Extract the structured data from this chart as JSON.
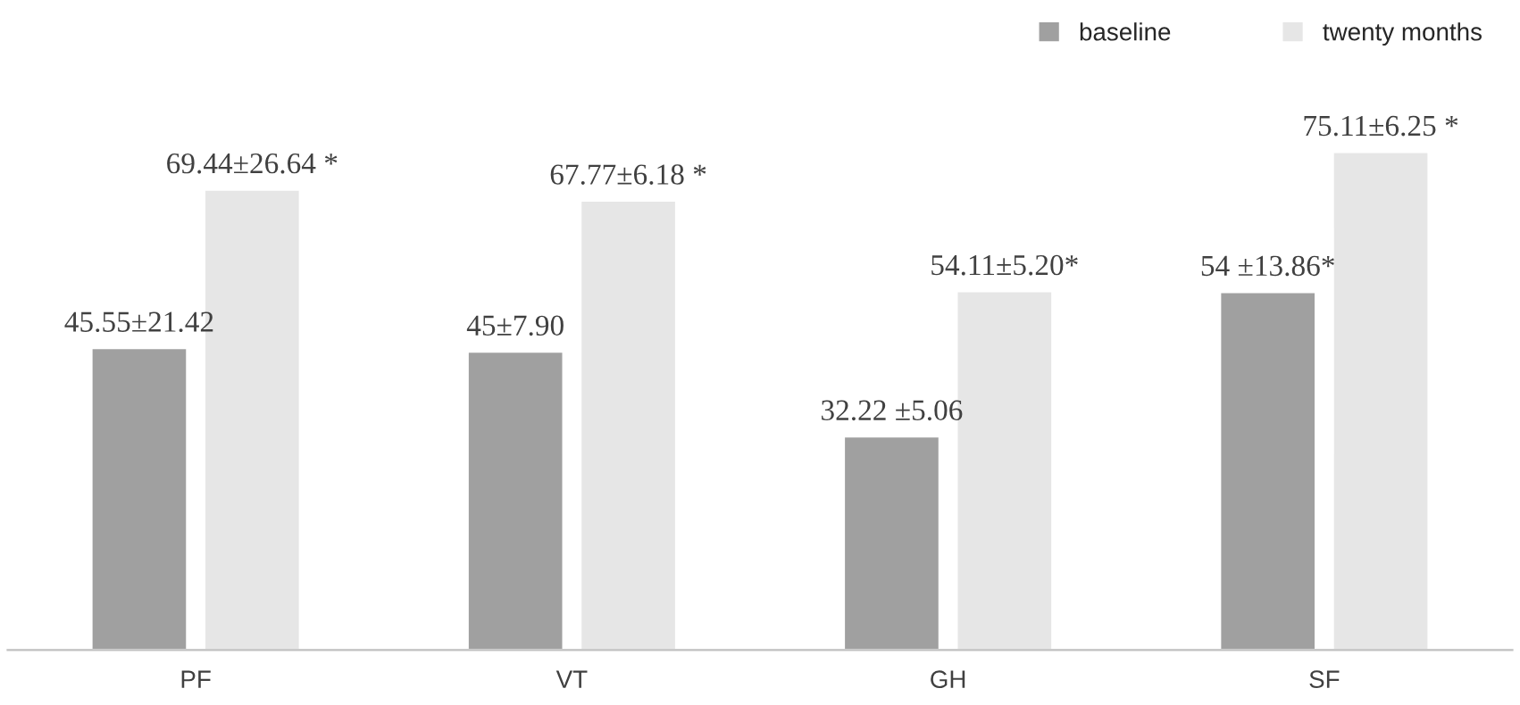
{
  "chart_data": {
    "type": "bar",
    "categories": [
      "PF",
      "VT",
      "GH",
      "SF"
    ],
    "series": [
      {
        "name": "baseline",
        "color": "#a0a0a0",
        "values": [
          45.55,
          45,
          32.22,
          54
        ],
        "value_labels": [
          "45.55±21.42",
          "45±7.90",
          "32.22 ±5.06",
          "54 ±13.86*"
        ]
      },
      {
        "name": "twenty months",
        "color": "#e6e6e6",
        "values": [
          69.44,
          67.77,
          54.11,
          75.11
        ],
        "value_labels": [
          "69.44±26.64 *",
          "67.77±6.18 *",
          "54.11±5.20*",
          "75.11±6.25 *"
        ]
      }
    ],
    "tick_labels": "x",
    "legend": "top right",
    "grid": false
  }
}
